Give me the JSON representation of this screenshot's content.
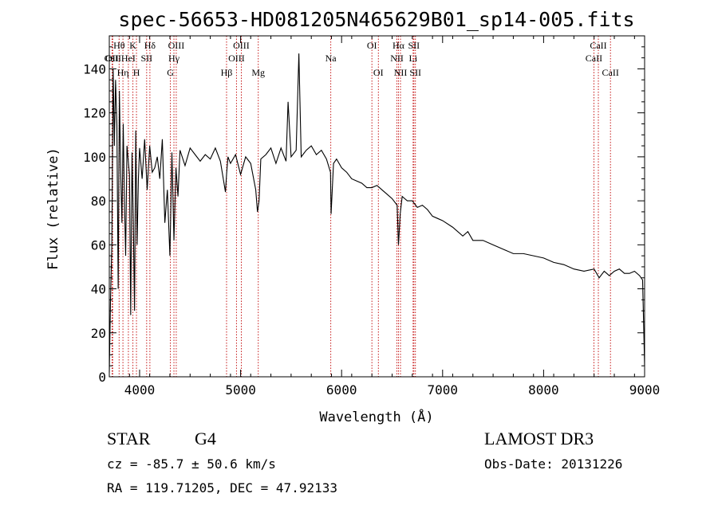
{
  "chart_data": {
    "type": "line",
    "title": "spec-56653-HD081205N465629B01_sp14-005.fits",
    "xlabel": "Wavelength (Å)",
    "ylabel": "Flux (relative)",
    "xlim": [
      3700,
      9000
    ],
    "ylim": [
      0,
      155
    ],
    "xticks": [
      4000,
      5000,
      6000,
      7000,
      8000,
      9000
    ],
    "yticks": [
      0,
      20,
      40,
      60,
      80,
      100,
      120,
      140
    ],
    "grid": false,
    "series": [
      {
        "name": "spectrum",
        "x": [
          3700,
          3712,
          3725,
          3738,
          3750,
          3762,
          3775,
          3788,
          3800,
          3812,
          3825,
          3838,
          3850,
          3862,
          3875,
          3888,
          3900,
          3912,
          3925,
          3938,
          3950,
          3962,
          3975,
          3988,
          4000,
          4025,
          4050,
          4075,
          4100,
          4125,
          4150,
          4175,
          4200,
          4225,
          4250,
          4275,
          4300,
          4320,
          4340,
          4360,
          4380,
          4400,
          4450,
          4500,
          4550,
          4600,
          4650,
          4700,
          4750,
          4800,
          4850,
          4861,
          4875,
          4900,
          4950,
          5000,
          5050,
          5100,
          5150,
          5167,
          5183,
          5200,
          5250,
          5300,
          5350,
          5400,
          5450,
          5470,
          5500,
          5550,
          5577,
          5600,
          5650,
          5700,
          5750,
          5800,
          5850,
          5890,
          5896,
          5920,
          5950,
          6000,
          6050,
          6100,
          6150,
          6200,
          6250,
          6300,
          6350,
          6400,
          6450,
          6500,
          6550,
          6563,
          6580,
          6600,
          6650,
          6700,
          6750,
          6800,
          6850,
          6900,
          6950,
          7000,
          7100,
          7200,
          7250,
          7300,
          7400,
          7500,
          7600,
          7700,
          7800,
          7900,
          8000,
          8100,
          8200,
          8300,
          8400,
          8500,
          8550,
          8600,
          8650,
          8700,
          8750,
          8800,
          8850,
          8900,
          8950,
          8980,
          9000
        ],
        "values": [
          2,
          35,
          60,
          140,
          105,
          135,
          115,
          40,
          130,
          95,
          70,
          115,
          80,
          55,
          105,
          98,
          92,
          28,
          102,
          70,
          30,
          112,
          60,
          90,
          104,
          90,
          108,
          85,
          105,
          93,
          95,
          100,
          90,
          108,
          70,
          85,
          55,
          102,
          62,
          95,
          82,
          103,
          96,
          104,
          101,
          98,
          101,
          99,
          104,
          98,
          84,
          92,
          100,
          97,
          101,
          92,
          100,
          97,
          85,
          75,
          80,
          99,
          101,
          104,
          97,
          104,
          98,
          125,
          100,
          103,
          147,
          100,
          103,
          105,
          101,
          103,
          99,
          93,
          74,
          97,
          99,
          95,
          93,
          90,
          89,
          88,
          86,
          86,
          87,
          85,
          83,
          81,
          78,
          60,
          74,
          82,
          80,
          80,
          77,
          78,
          76,
          73,
          72,
          71,
          68,
          64,
          66,
          62,
          62,
          60,
          58,
          56,
          56,
          55,
          54,
          52,
          51,
          49,
          48,
          49,
          45,
          48,
          46,
          48,
          49,
          47,
          47,
          48,
          46,
          44,
          5
        ],
        "color": "#000000"
      }
    ],
    "line_markers": [
      {
        "label": "OII",
        "wavelength": 3727,
        "row": 2
      },
      {
        "label": "Hθ",
        "wavelength": 3797,
        "row": 1
      },
      {
        "label": "Hη",
        "wavelength": 3835,
        "row": 3
      },
      {
        "label": "CaII",
        "wavelength": 3734,
        "row": 2
      },
      {
        "label": "K",
        "wavelength": 3934,
        "row": 1
      },
      {
        "label": "H",
        "wavelength": 3969,
        "row": 3
      },
      {
        "label": "HeI",
        "wavelength": 3889,
        "row": 2
      },
      {
        "label": "SII",
        "wavelength": 4070,
        "row": 2
      },
      {
        "label": "Hδ",
        "wavelength": 4102,
        "row": 1
      },
      {
        "label": "Hγ",
        "wavelength": 4340,
        "row": 2
      },
      {
        "label": "G",
        "wavelength": 4305,
        "row": 3
      },
      {
        "label": "OIII",
        "wavelength": 4363,
        "row": 1
      },
      {
        "label": "Hβ",
        "wavelength": 4861,
        "row": 3
      },
      {
        "label": "OIII",
        "wavelength": 4959,
        "row": 2
      },
      {
        "label": "OIII",
        "wavelength": 5007,
        "row": 1
      },
      {
        "label": "Mg",
        "wavelength": 5175,
        "row": 3
      },
      {
        "label": "Na",
        "wavelength": 5893,
        "row": 2
      },
      {
        "label": "OI",
        "wavelength": 6300,
        "row": 1
      },
      {
        "label": "OI",
        "wavelength": 6364,
        "row": 3
      },
      {
        "label": "NII",
        "wavelength": 6548,
        "row": 2
      },
      {
        "label": "Hα",
        "wavelength": 6563,
        "row": 1
      },
      {
        "label": "NII",
        "wavelength": 6583,
        "row": 3
      },
      {
        "label": "Li",
        "wavelength": 6708,
        "row": 2
      },
      {
        "label": "SII",
        "wavelength": 6716,
        "row": 1
      },
      {
        "label": "SII",
        "wavelength": 6731,
        "row": 3
      },
      {
        "label": "CaII",
        "wavelength": 8498,
        "row": 2
      },
      {
        "label": "CaII",
        "wavelength": 8542,
        "row": 1
      },
      {
        "label": "CaII",
        "wavelength": 8662,
        "row": 3
      }
    ],
    "marker_color": "#c00000"
  },
  "info": {
    "object_class": "STAR",
    "subclass": "G4",
    "survey": "LAMOST DR3",
    "redshift": "cz = -85.7 ± 50.6 km/s",
    "obs_date": "Obs-Date: 20131226",
    "coords": "RA = 119.71205, DEC =  47.92133"
  }
}
